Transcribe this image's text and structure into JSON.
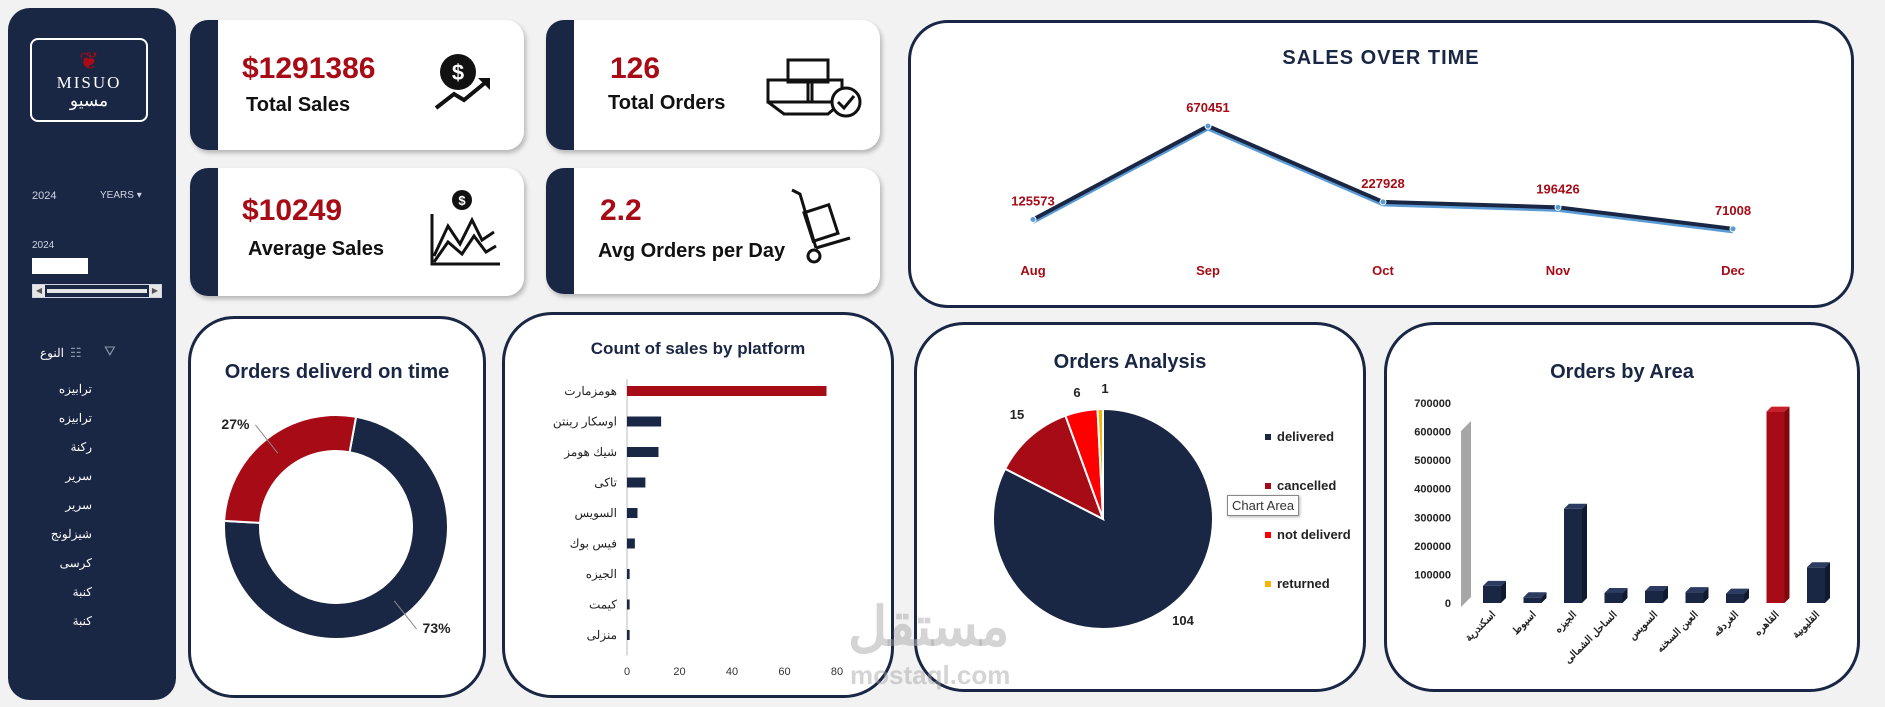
{
  "sidebar": {
    "logo_en": "MISUO",
    "logo_ar": "مسيو",
    "year_value": "2024",
    "years_label": "YEARS",
    "timeline_year": "2024",
    "slicer_title": "النوع",
    "slicer_items": [
      "ترابيزه",
      "ترابيزه",
      "ركنة",
      "سرير",
      "سرير",
      "شيزلونج",
      "كرسى",
      "كنبة",
      "كنبة"
    ]
  },
  "kpis": {
    "total_sales": {
      "value": "$1291386",
      "label": "Total Sales"
    },
    "total_orders": {
      "value": "126",
      "label": "Total Orders"
    },
    "average_sales": {
      "value": "$10249",
      "label": "Average Sales"
    },
    "avg_orders_day": {
      "value": "2.2",
      "label": "Avg Orders per Day"
    }
  },
  "tooltip": "Chart Area",
  "watermark": {
    "main": "مستقل",
    "sub": "mostaql.com"
  },
  "colors": {
    "navy": "#1a2744",
    "red": "#a60b16",
    "bright_red": "#ff0000",
    "gold": "#f2b705",
    "gray": "#a6a6a6"
  },
  "chart_data": [
    {
      "type": "line",
      "title": "SALES OVER TIME",
      "categories": [
        "Aug",
        "Sep",
        "Oct",
        "Nov",
        "Dec"
      ],
      "values": [
        125573,
        670451,
        227928,
        196426,
        71008
      ]
    },
    {
      "type": "pie",
      "subtype": "donut",
      "title": "Orders deliverd on time",
      "values": [
        73,
        27
      ],
      "labels": [
        "73%",
        "27%"
      ],
      "colors": [
        "#1a2744",
        "#a60b16"
      ]
    },
    {
      "type": "bar",
      "orientation": "horizontal",
      "title": "Count of sales by platform",
      "categories": [
        "هومزمارت",
        "اوسكار رينتن",
        "شيك هومز",
        "تاكى",
        "السويس",
        "فيس بوك",
        "الجيزه",
        "كيمت",
        "منزلى"
      ],
      "values": [
        76,
        13,
        12,
        7,
        4,
        3,
        1,
        1,
        1
      ],
      "xlim": [
        0,
        80
      ],
      "xticks": [
        0,
        20,
        40,
        60,
        80
      ]
    },
    {
      "type": "pie",
      "title": "Orders Analysis",
      "categories": [
        "delivered",
        "cancelled",
        "not deliverd",
        "returned"
      ],
      "values": [
        104,
        15,
        6,
        1
      ],
      "colors": [
        "#1a2744",
        "#a60b16",
        "#ff0000",
        "#f2b705"
      ],
      "legend": "right"
    },
    {
      "type": "bar",
      "subtype": "3d-column",
      "title": "Orders by Area",
      "categories": [
        "اسكندرية",
        "اسيوط",
        "الجيزه",
        "الساحل الشمالى",
        "السويس",
        "العين السخنه",
        "الغردقه",
        "القاهره",
        "القليوبية"
      ],
      "values": [
        60000,
        20000,
        330000,
        35000,
        42000,
        38000,
        33000,
        670000,
        125000
      ],
      "ylim": [
        0,
        700000
      ],
      "yticks": [
        0,
        100000,
        200000,
        300000,
        400000,
        500000,
        600000,
        700000
      ]
    }
  ]
}
